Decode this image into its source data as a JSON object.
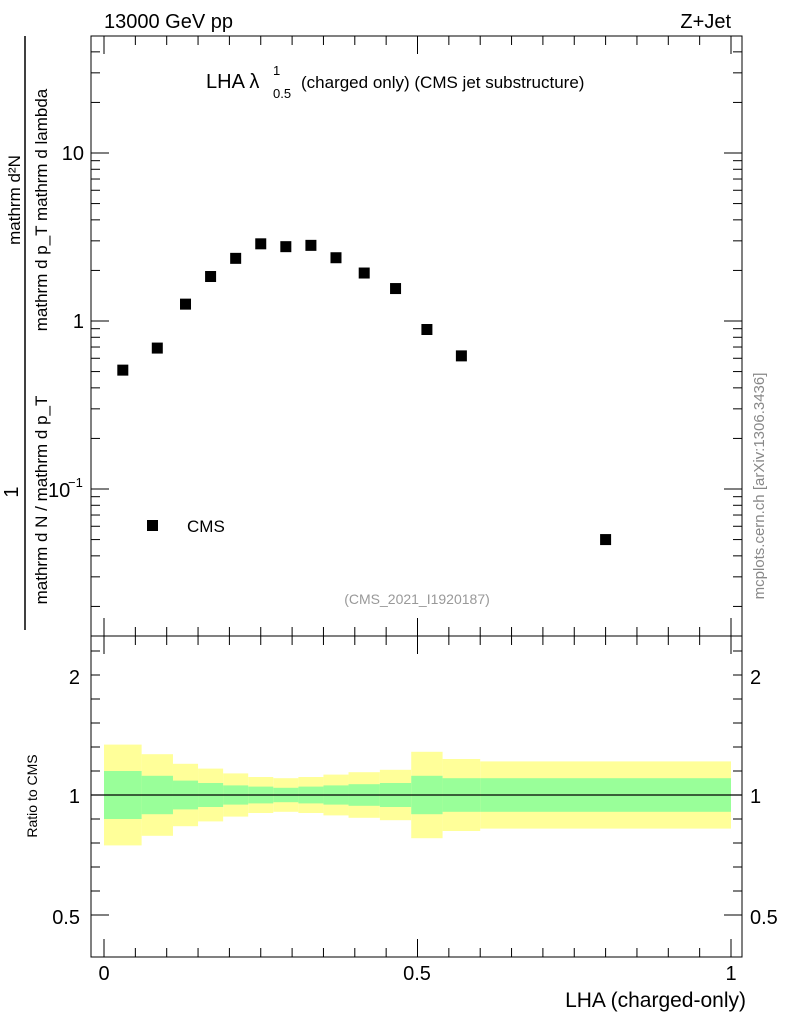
{
  "header": {
    "left": "13000 GeV pp",
    "right": "Z+Jet"
  },
  "plot_title": {
    "main": "LHA λ",
    "sup": "1",
    "sub": "0.5",
    "rest": "(charged only) (CMS jet substructure)"
  },
  "analysis_id": "(CMS_2021_I1920187)",
  "watermark": "mcplots.cern.ch [arXiv:1306.3436]",
  "ylabel_lines": [
    "mathrm d²N",
    "mathrm d p_T mathrm d lambda",
    "1",
    "mathrm d N / mathrm d p_T"
  ],
  "ratio_ylabel": "Ratio to CMS",
  "xlabel": "LHA (charged-only)",
  "legend": {
    "label": "CMS"
  },
  "chart_data": [
    {
      "type": "scatter",
      "name": "main",
      "yscale": "log",
      "xlim": [
        -0.02,
        1.02
      ],
      "ylim": [
        0.017,
        50
      ],
      "ytick_labels": [
        "10",
        "1",
        "10^-1"
      ],
      "series": [
        {
          "name": "CMS",
          "x": [
            0.03,
            0.085,
            0.13,
            0.17,
            0.21,
            0.25,
            0.29,
            0.33,
            0.37,
            0.415,
            0.465,
            0.515,
            0.57,
            0.8
          ],
          "y": [
            0.51,
            0.69,
            1.26,
            1.84,
            2.36,
            2.88,
            2.77,
            2.82,
            2.38,
            1.93,
            1.56,
            0.89,
            0.62,
            0.05
          ]
        }
      ]
    },
    {
      "type": "area",
      "name": "ratio",
      "xlim": [
        -0.02,
        1.02
      ],
      "ylim": [
        0.4,
        2.4
      ],
      "ytick_labels": [
        "0.5",
        "1",
        "2"
      ],
      "xtick_labels": [
        "0",
        "0.5",
        "1"
      ],
      "reference_line": 1,
      "bin_edges": [
        0.0,
        0.06,
        0.11,
        0.15,
        0.19,
        0.23,
        0.27,
        0.31,
        0.35,
        0.39,
        0.44,
        0.49,
        0.54,
        0.6,
        1.0
      ],
      "band_inner": {
        "lo": [
          0.9,
          0.92,
          0.94,
          0.95,
          0.96,
          0.965,
          0.97,
          0.965,
          0.96,
          0.955,
          0.95,
          0.92,
          0.93,
          0.93
        ],
        "hi": [
          1.1,
          1.08,
          1.06,
          1.05,
          1.04,
          1.035,
          1.03,
          1.035,
          1.04,
          1.045,
          1.05,
          1.08,
          1.07,
          1.07
        ]
      },
      "band_outer": {
        "lo": [
          0.79,
          0.83,
          0.87,
          0.89,
          0.91,
          0.925,
          0.93,
          0.925,
          0.915,
          0.905,
          0.895,
          0.82,
          0.85,
          0.86
        ],
        "hi": [
          1.21,
          1.17,
          1.13,
          1.11,
          1.09,
          1.075,
          1.07,
          1.075,
          1.085,
          1.095,
          1.105,
          1.18,
          1.15,
          1.14
        ]
      },
      "colors": {
        "outer": "#ffff99",
        "inner": "#99ff99",
        "line": "#000000"
      }
    }
  ]
}
